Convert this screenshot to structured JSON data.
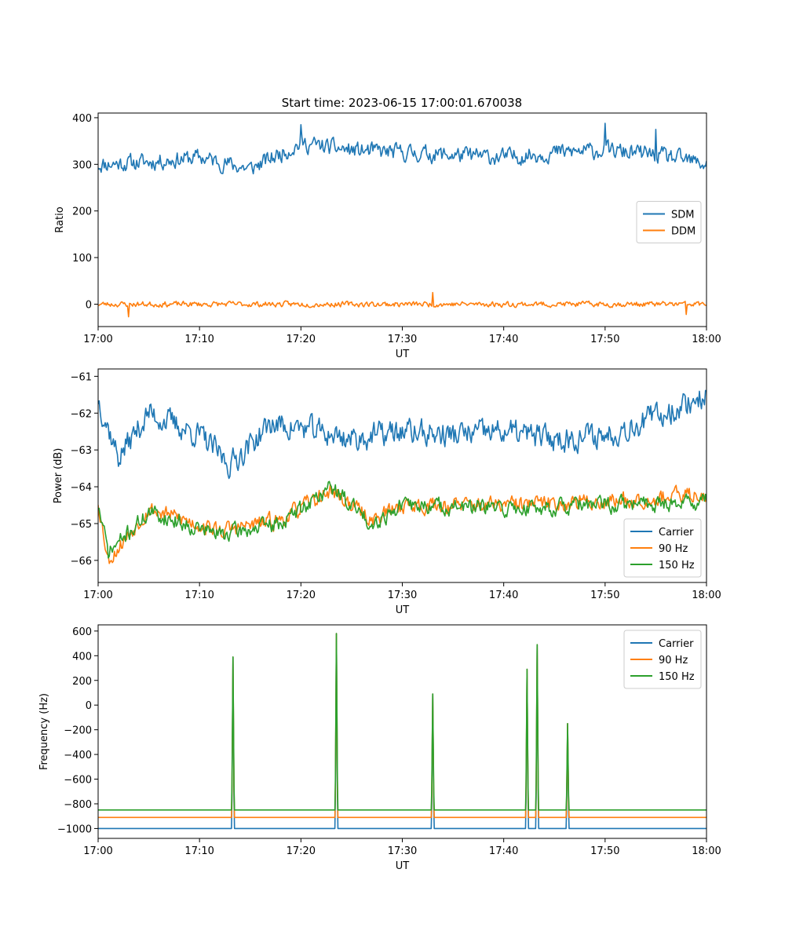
{
  "figure_title": "Start time: 2023-06-15 17:00:01.670038",
  "colors": {
    "blue": "#1f77b4",
    "orange": "#ff7f0e",
    "green": "#2ca02c"
  },
  "chart_data": [
    {
      "type": "line",
      "xlabel": "UT",
      "ylabel": "Ratio",
      "xlim": [
        "17:00",
        "18:00"
      ],
      "ylim": [
        -48,
        410
      ],
      "x_ticks": [
        "17:00",
        "17:10",
        "17:20",
        "17:30",
        "17:40",
        "17:50",
        "18:00"
      ],
      "y_ticks": [
        0,
        100,
        200,
        300,
        400
      ],
      "legend": "center-right",
      "series": [
        {
          "name": "SDM",
          "color": "#1f77b4",
          "mean": 318,
          "noise": 28,
          "seed": 11,
          "points": [
            [
              "17:00",
              300
            ],
            [
              "17:05",
              305
            ],
            [
              "17:10",
              315
            ],
            [
              "17:15",
              290
            ],
            [
              "17:20",
              345
            ],
            [
              "17:25",
              330
            ],
            [
              "17:30",
              325
            ],
            [
              "17:35",
              320
            ],
            [
              "17:40",
              315
            ],
            [
              "17:45",
              325
            ],
            [
              "17:50",
              330
            ],
            [
              "17:55",
              320
            ],
            [
              "18:00",
              300
            ]
          ],
          "peaks": [
            [
              "17:20",
              385
            ],
            [
              "17:50",
              388
            ],
            [
              "17:55",
              375
            ]
          ]
        },
        {
          "name": "DDM",
          "color": "#ff7f0e",
          "mean": 0,
          "noise": 9,
          "seed": 23,
          "points": [
            [
              "17:00",
              0
            ],
            [
              "17:30",
              0
            ],
            [
              "18:00",
              0
            ]
          ],
          "peaks": [
            [
              "17:33",
              25
            ],
            [
              "17:03",
              -27
            ],
            [
              "17:58",
              -22
            ]
          ]
        }
      ]
    },
    {
      "type": "line",
      "xlabel": "UT",
      "ylabel": "Power (dB)",
      "xlim": [
        "17:00",
        "18:00"
      ],
      "ylim": [
        -66.6,
        -60.8
      ],
      "x_ticks": [
        "17:00",
        "17:10",
        "17:20",
        "17:30",
        "17:40",
        "17:50",
        "18:00"
      ],
      "y_ticks": [
        -66,
        -65,
        -64,
        -63,
        -62,
        -61
      ],
      "legend": "bottom-right",
      "series": [
        {
          "name": "Carrier",
          "color": "#1f77b4",
          "mean": -62.6,
          "noise": 0.55,
          "seed": 37,
          "points": [
            [
              "17:00",
              -61.6
            ],
            [
              "17:02",
              -63.2
            ],
            [
              "17:05",
              -62.0
            ],
            [
              "17:10",
              -62.6
            ],
            [
              "17:13",
              -63.4
            ],
            [
              "17:17",
              -62.3
            ],
            [
              "17:20",
              -62.4
            ],
            [
              "17:25",
              -62.7
            ],
            [
              "17:30",
              -62.5
            ],
            [
              "17:35",
              -62.6
            ],
            [
              "17:40",
              -62.5
            ],
            [
              "17:45",
              -62.7
            ],
            [
              "17:50",
              -62.6
            ],
            [
              "17:55",
              -62.1
            ],
            [
              "18:00",
              -61.5
            ]
          ]
        },
        {
          "name": "90 Hz",
          "color": "#ff7f0e",
          "mean": -64.7,
          "noise": 0.35,
          "seed": 53,
          "points": [
            [
              "17:00",
              -64.4
            ],
            [
              "17:01",
              -66.0
            ],
            [
              "17:05",
              -64.6
            ],
            [
              "17:12",
              -65.2
            ],
            [
              "17:18",
              -64.9
            ],
            [
              "17:23",
              -64.1
            ],
            [
              "17:27",
              -64.9
            ],
            [
              "17:30",
              -64.5
            ],
            [
              "17:40",
              -64.5
            ],
            [
              "17:50",
              -64.4
            ],
            [
              "18:00",
              -64.2
            ]
          ]
        },
        {
          "name": "150 Hz",
          "color": "#2ca02c",
          "mean": -64.8,
          "noise": 0.35,
          "seed": 71,
          "points": [
            [
              "17:00",
              -64.5
            ],
            [
              "17:01",
              -65.8
            ],
            [
              "17:05",
              -64.7
            ],
            [
              "17:12",
              -65.3
            ],
            [
              "17:18",
              -65.0
            ],
            [
              "17:23",
              -64.0
            ],
            [
              "17:27",
              -65.0
            ],
            [
              "17:30",
              -64.5
            ],
            [
              "17:40",
              -64.6
            ],
            [
              "17:50",
              -64.5
            ],
            [
              "18:00",
              -64.4
            ]
          ]
        }
      ]
    },
    {
      "type": "line",
      "xlabel": "UT",
      "ylabel": "Frequency (Hz)",
      "xlim": [
        "17:00",
        "18:00"
      ],
      "ylim": [
        -1080,
        650
      ],
      "x_ticks": [
        "17:00",
        "17:10",
        "17:20",
        "17:30",
        "17:40",
        "17:50",
        "18:00"
      ],
      "y_ticks": [
        -1000,
        -800,
        -600,
        -400,
        -200,
        0,
        200,
        400,
        600
      ],
      "legend": "top-right",
      "spike_times": [
        "17:13.3",
        "17:23.5",
        "17:33.0",
        "17:42.3",
        "17:43.3",
        "17:46.3"
      ],
      "spike_peaks": [
        390,
        580,
        90,
        290,
        490,
        -150
      ],
      "series": [
        {
          "name": "Carrier",
          "color": "#1f77b4",
          "baseline": -1000
        },
        {
          "name": "90 Hz",
          "color": "#ff7f0e",
          "baseline": -910
        },
        {
          "name": "150 Hz",
          "color": "#2ca02c",
          "baseline": -850
        }
      ]
    }
  ]
}
